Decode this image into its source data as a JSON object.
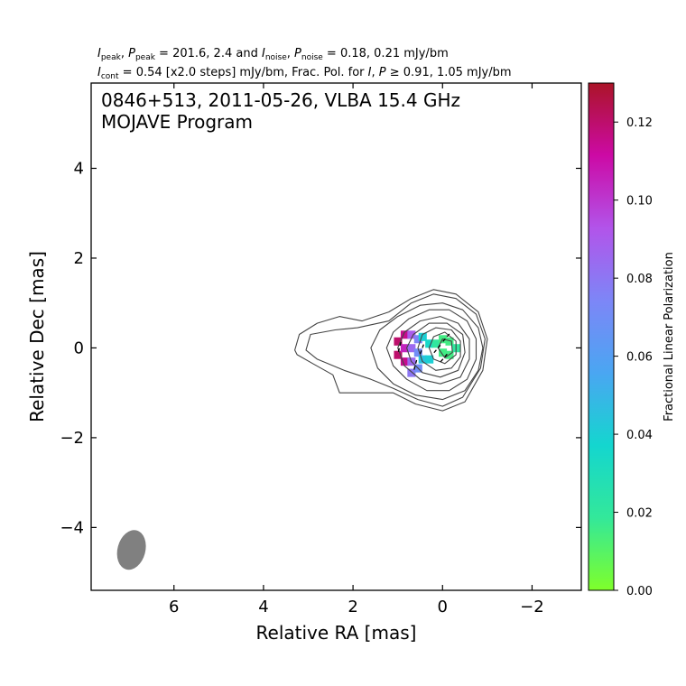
{
  "header": {
    "line1_ipeak_sym": "I",
    "line1_ipeak_sub": "peak",
    "line1_sep1": ", ",
    "line1_ppeak_sym": "P",
    "line1_ppeak_sub": "peak",
    "line1_eq1": " = 201.6, 2.4 and ",
    "line1_inoise_sym": "I",
    "line1_inoise_sub": "noise",
    "line1_sep2": ", ",
    "line1_pnoise_sym": "P",
    "line1_pnoise_sub": "noise",
    "line1_eq2": " = 0.18, 0.21 mJy/bm",
    "line2_icont_sym": "I",
    "line2_icont_sub": "cont",
    "line2_a": " = 0.54 [x2.0 steps] mJy/bm, Frac. Pol. for ",
    "line2_i_sym": "I",
    "line2_b": ", ",
    "line2_p_sym": "P",
    "line2_c": " ≥ 0.91, 1.05 mJy/bm"
  },
  "inset": {
    "line1": "0846+513, 2011-05-26, VLBA 15.4 GHz",
    "line2": "MOJAVE Program"
  },
  "colorbar": {
    "label": "Fractional Linear Polarization",
    "range": [
      0.0,
      0.13
    ],
    "ticks": [
      "0.00",
      "0.02",
      "0.04",
      "0.06",
      "0.08",
      "0.10",
      "0.12"
    ],
    "tick_values": [
      0.0,
      0.02,
      0.04,
      0.06,
      0.08,
      0.1,
      0.12
    ],
    "colormap": [
      "#7fff2a",
      "#33e89a",
      "#14d6cf",
      "#4aa6f2",
      "#7d86f7",
      "#b254ea",
      "#cc0aa5",
      "#ab1428"
    ]
  },
  "chart_data": {
    "type": "scatter",
    "title": "",
    "xlabel": "Relative RA [mas]",
    "ylabel": "Relative Dec [mas]",
    "xlim": [
      7.85,
      -3.1
    ],
    "ylim": [
      -5.4,
      5.9
    ],
    "x_ticks": [
      "6",
      "4",
      "2",
      "0",
      "−2"
    ],
    "x_tick_values": [
      6,
      4,
      2,
      0,
      -2
    ],
    "y_ticks": [
      "4",
      "2",
      "0",
      "−2",
      "−4"
    ],
    "y_tick_values": [
      4,
      2,
      0,
      -2,
      -4
    ],
    "contours": [
      {
        "level_mJy": 0.54,
        "points": [
          [
            3.3,
            -0.05
          ],
          [
            3.2,
            0.3
          ],
          [
            2.8,
            0.55
          ],
          [
            2.3,
            0.7
          ],
          [
            1.8,
            0.6
          ],
          [
            1.2,
            0.8
          ],
          [
            0.7,
            1.1
          ],
          [
            0.2,
            1.3
          ],
          [
            -0.3,
            1.2
          ],
          [
            -0.8,
            0.8
          ],
          [
            -1.0,
            0.2
          ],
          [
            -0.9,
            -0.5
          ],
          [
            -0.5,
            -1.2
          ],
          [
            0,
            -1.4
          ],
          [
            0.6,
            -1.25
          ],
          [
            1.1,
            -1.0
          ],
          [
            1.6,
            -1.0
          ],
          [
            2.3,
            -1.0
          ],
          [
            2.45,
            -0.6
          ],
          [
            2.9,
            -0.35
          ],
          [
            3.25,
            -0.15
          ]
        ]
      },
      {
        "level_mJy": 1.08,
        "points": [
          [
            3.05,
            -0.05
          ],
          [
            2.95,
            0.3
          ],
          [
            2.4,
            0.4
          ],
          [
            1.9,
            0.45
          ],
          [
            1.2,
            0.6
          ],
          [
            0.7,
            1.0
          ],
          [
            0.2,
            1.2
          ],
          [
            -0.3,
            1.1
          ],
          [
            -0.75,
            0.75
          ],
          [
            -0.95,
            0.2
          ],
          [
            -0.85,
            -0.45
          ],
          [
            -0.45,
            -1.1
          ],
          [
            0,
            -1.3
          ],
          [
            0.55,
            -1.15
          ],
          [
            1.1,
            -0.9
          ],
          [
            1.6,
            -0.7
          ],
          [
            2.2,
            -0.5
          ],
          [
            2.8,
            -0.25
          ]
        ]
      },
      {
        "level_mJy": 2.16,
        "points": [
          [
            1.6,
            0
          ],
          [
            1.4,
            0.4
          ],
          [
            1.0,
            0.7
          ],
          [
            0.5,
            0.95
          ],
          [
            0,
            1.0
          ],
          [
            -0.45,
            0.85
          ],
          [
            -0.8,
            0.45
          ],
          [
            -0.9,
            0
          ],
          [
            -0.8,
            -0.5
          ],
          [
            -0.5,
            -0.95
          ],
          [
            0,
            -1.15
          ],
          [
            0.6,
            -1.05
          ],
          [
            1.1,
            -0.8
          ],
          [
            1.45,
            -0.45
          ]
        ]
      },
      {
        "level_mJy": 4.32,
        "points": [
          [
            1.25,
            0
          ],
          [
            1.1,
            0.35
          ],
          [
            0.75,
            0.65
          ],
          [
            0.3,
            0.85
          ],
          [
            -0.15,
            0.85
          ],
          [
            -0.55,
            0.6
          ],
          [
            -0.75,
            0.2
          ],
          [
            -0.75,
            -0.25
          ],
          [
            -0.55,
            -0.7
          ],
          [
            -0.15,
            -0.95
          ],
          [
            0.35,
            -0.95
          ],
          [
            0.8,
            -0.7
          ],
          [
            1.1,
            -0.4
          ]
        ]
      },
      {
        "level_mJy": 8.64,
        "points": [
          [
            1.0,
            0
          ],
          [
            0.85,
            0.35
          ],
          [
            0.5,
            0.6
          ],
          [
            0.05,
            0.7
          ],
          [
            -0.35,
            0.55
          ],
          [
            -0.6,
            0.2
          ],
          [
            -0.6,
            -0.25
          ],
          [
            -0.4,
            -0.65
          ],
          [
            0.05,
            -0.8
          ],
          [
            0.5,
            -0.7
          ],
          [
            0.85,
            -0.4
          ]
        ]
      },
      {
        "level_mJy": 17.28,
        "points": [
          [
            0.8,
            0
          ],
          [
            0.65,
            0.3
          ],
          [
            0.3,
            0.55
          ],
          [
            -0.1,
            0.55
          ],
          [
            -0.45,
            0.3
          ],
          [
            -0.5,
            -0.1
          ],
          [
            -0.35,
            -0.5
          ],
          [
            0.05,
            -0.65
          ],
          [
            0.45,
            -0.55
          ],
          [
            0.7,
            -0.3
          ]
        ]
      },
      {
        "level_mJy": 34.56,
        "points": [
          [
            0.55,
            0
          ],
          [
            0.45,
            0.3
          ],
          [
            0.15,
            0.45
          ],
          [
            -0.2,
            0.4
          ],
          [
            -0.4,
            0.15
          ],
          [
            -0.4,
            -0.2
          ],
          [
            -0.2,
            -0.45
          ],
          [
            0.15,
            -0.5
          ],
          [
            0.45,
            -0.3
          ]
        ]
      },
      {
        "level_mJy": 69.12,
        "points": [
          [
            0.3,
            0
          ],
          [
            0.2,
            0.25
          ],
          [
            -0.05,
            0.35
          ],
          [
            -0.3,
            0.15
          ],
          [
            -0.3,
            -0.15
          ],
          [
            -0.05,
            -0.35
          ],
          [
            0.2,
            -0.25
          ]
        ]
      },
      {
        "level_mJy": 138.24,
        "points": [
          [
            0.1,
            0
          ],
          [
            0.0,
            0.2
          ],
          [
            -0.2,
            0.15
          ],
          [
            -0.22,
            -0.1
          ],
          [
            -0.05,
            -0.22
          ]
        ]
      }
    ],
    "polarization_pixels": [
      {
        "x": 1.0,
        "y": 0.15,
        "frac_pol": 0.12
      },
      {
        "x": 1.0,
        "y": -0.15,
        "frac_pol": 0.12
      },
      {
        "x": 0.85,
        "y": 0.3,
        "frac_pol": 0.115
      },
      {
        "x": 0.85,
        "y": -0.3,
        "frac_pol": 0.115
      },
      {
        "x": 0.85,
        "y": 0.0,
        "frac_pol": 0.105
      },
      {
        "x": 0.7,
        "y": 0.3,
        "frac_pol": 0.09
      },
      {
        "x": 0.7,
        "y": 0.0,
        "frac_pol": 0.085
      },
      {
        "x": 0.7,
        "y": -0.3,
        "frac_pol": 0.085
      },
      {
        "x": 0.7,
        "y": -0.55,
        "frac_pol": 0.08
      },
      {
        "x": 0.55,
        "y": 0.2,
        "frac_pol": 0.075
      },
      {
        "x": 0.55,
        "y": -0.1,
        "frac_pol": 0.07
      },
      {
        "x": 0.55,
        "y": -0.45,
        "frac_pol": 0.07
      },
      {
        "x": 0.45,
        "y": 0.25,
        "frac_pol": 0.04
      },
      {
        "x": 0.45,
        "y": -0.25,
        "frac_pol": 0.045
      },
      {
        "x": 0.3,
        "y": 0.1,
        "frac_pol": 0.035
      },
      {
        "x": 0.3,
        "y": -0.25,
        "frac_pol": 0.04
      },
      {
        "x": 0.15,
        "y": 0.1,
        "frac_pol": 0.02
      },
      {
        "x": 0.0,
        "y": 0.2,
        "frac_pol": 0.015
      },
      {
        "x": 0.0,
        "y": -0.1,
        "frac_pol": 0.015
      },
      {
        "x": -0.15,
        "y": 0.15,
        "frac_pol": 0.015
      },
      {
        "x": -0.15,
        "y": -0.15,
        "frac_pol": 0.015
      },
      {
        "x": -0.3,
        "y": 0.0,
        "frac_pol": 0.02
      }
    ],
    "evpa_ticks": [
      {
        "x": 0.95,
        "y": 0.05,
        "angle_deg": 15
      },
      {
        "x": 0.6,
        "y": -0.35,
        "angle_deg": 15
      },
      {
        "x": 0.45,
        "y": 0.0,
        "angle_deg": 20
      },
      {
        "x": 0.1,
        "y": 0.0,
        "angle_deg": 40
      },
      {
        "x": -0.1,
        "y": 0.25,
        "angle_deg": 40
      },
      {
        "x": -0.05,
        "y": -0.2,
        "angle_deg": 40
      }
    ],
    "beam": {
      "x": 6.95,
      "y": -4.5,
      "major_mas": 0.9,
      "minor_mas": 0.62,
      "pa_deg": 15
    }
  }
}
